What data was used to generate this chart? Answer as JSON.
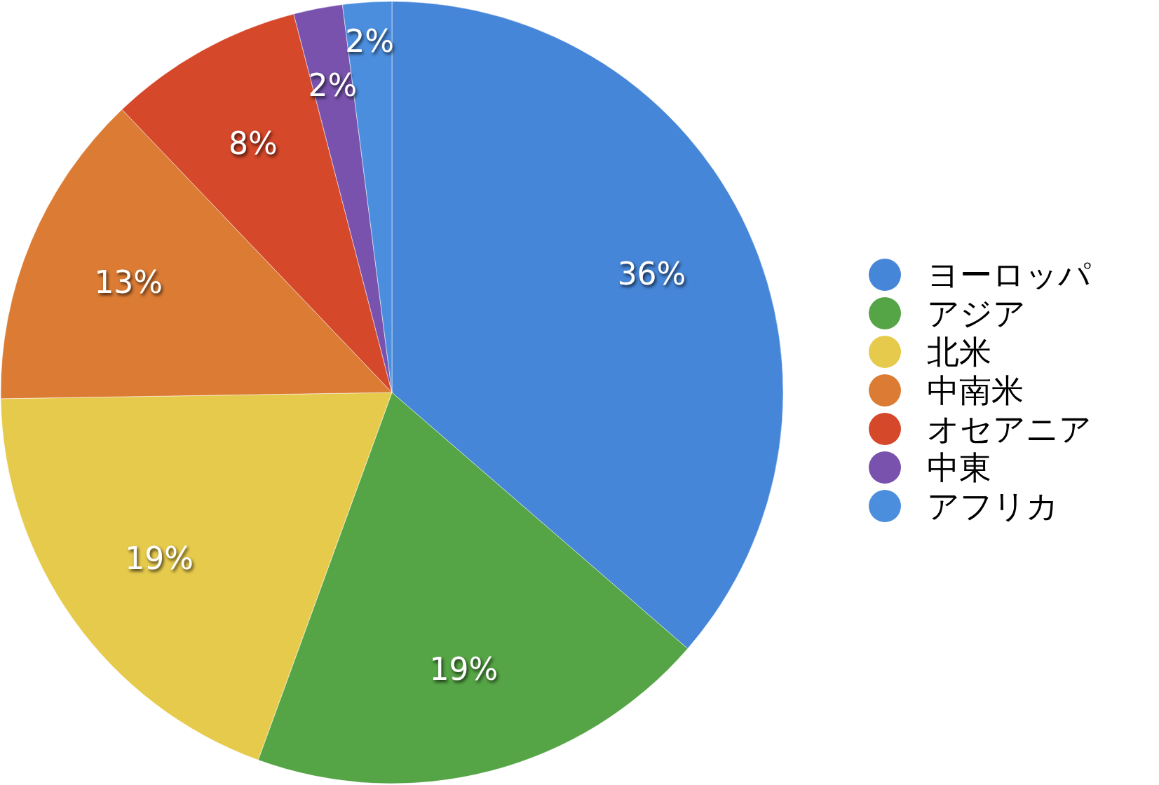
{
  "chart_data": {
    "type": "pie",
    "categories": [
      "ヨーロッパ",
      "アジア",
      "北米",
      "中南米",
      "オセアニア",
      "中東",
      "アフリカ"
    ],
    "values": [
      36,
      19,
      19,
      13,
      8,
      2,
      2
    ],
    "value_labels": [
      "36%",
      "19%",
      "19%",
      "13%",
      "8%",
      "2%",
      "2%"
    ],
    "colors": [
      "#4686d8",
      "#55a445",
      "#e6ca4c",
      "#dc7c34",
      "#d5482a",
      "#7852ac",
      "#4c8ede"
    ],
    "legend": "right"
  }
}
